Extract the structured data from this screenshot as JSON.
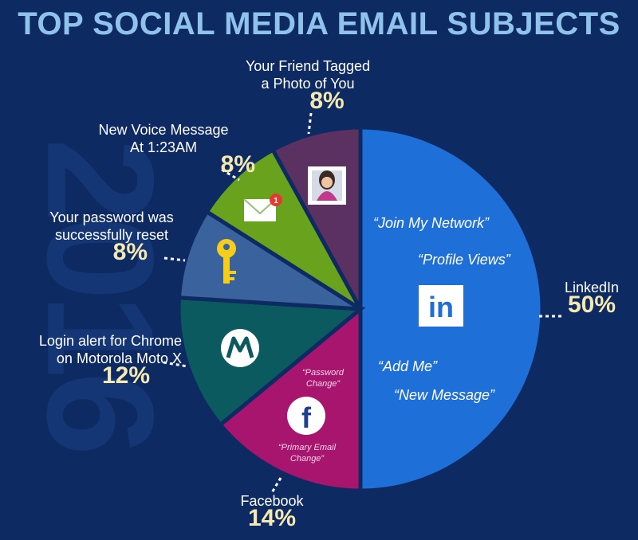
{
  "chart_data": {
    "type": "pie",
    "title": "TOP SOCIAL MEDIA EMAIL SUBJECTS",
    "slices": [
      {
        "label": "LinkedIn",
        "value": 50,
        "display": "50%",
        "color": "#1e6fd8"
      },
      {
        "label": "Facebook",
        "value": 14,
        "display": "14%",
        "color": "#a8156e"
      },
      {
        "label": "Login alert for Chrome on Motorola Moto X",
        "value": 12,
        "display": "12%",
        "color": "#0a5a5f"
      },
      {
        "label": "Your password was successfully reset",
        "value": 8,
        "display": "8%",
        "color": "#3a629c"
      },
      {
        "label": "New Voice Message At 1:23AM",
        "value": 8,
        "display": "8%",
        "color": "#69a31e"
      },
      {
        "label": "Your Friend Tagged a Photo of You",
        "value": 8,
        "display": "8%",
        "color": "#5a3160"
      }
    ]
  },
  "background_year": "2016",
  "labels": {
    "linkedin": "LinkedIn",
    "facebook": "Facebook",
    "motorola_line1": "Login alert for Chrome",
    "motorola_line2": "on Motorola Moto X",
    "password_line1": "Your password was",
    "password_line2": "successfully reset",
    "voice_line1": "New Voice Message",
    "voice_line2": "At 1:23AM",
    "friend_line1": "Your Friend Tagged",
    "friend_line2": "a Photo of You"
  },
  "linkedin_subjects": [
    "“Join My Network”",
    "“Profile Views”",
    "“Add Me”",
    "“New Message”"
  ],
  "facebook_subjects": {
    "a_line1": "“Password",
    "a_line2": "Change”",
    "b_line1": "“Primary Email",
    "b_line2": "Change”"
  },
  "icons": {
    "linkedin": "linkedin-logo-icon",
    "facebook": "facebook-logo-icon",
    "motorola": "motorola-logo-icon",
    "key": "key-icon",
    "email": "envelope-icon",
    "photo": "profile-photo-icon"
  },
  "linkedin_logo_text": "in",
  "facebook_logo_text": "f",
  "email_badge": "1"
}
